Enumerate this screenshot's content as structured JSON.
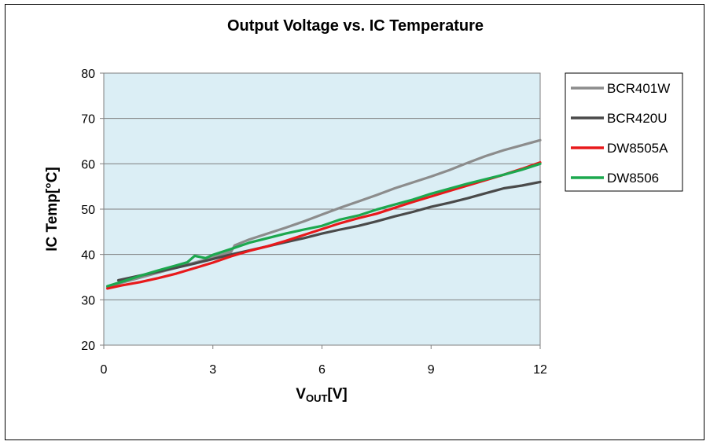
{
  "chart_data": {
    "type": "line",
    "title": "Output Voltage vs. IC Temperature",
    "xlabel_main": "V",
    "xlabel_sub": "OUT",
    "xlabel_unit": "[V]",
    "ylabel": "IC Temp[°C]",
    "xlim": [
      0,
      12
    ],
    "ylim": [
      20,
      80
    ],
    "xticks": [
      0,
      3,
      6,
      9,
      12
    ],
    "yticks": [
      20,
      30,
      40,
      50,
      60,
      70,
      80
    ],
    "grid": true,
    "legend_position": "right",
    "background": "#dbeef5",
    "series": [
      {
        "name": "BCR401W",
        "color": "#8c8c8c",
        "x": [
          0.1,
          0.5,
          1.0,
          1.5,
          2.0,
          2.5,
          3.0,
          3.5,
          3.6,
          4.0,
          4.5,
          5.0,
          5.5,
          6.0,
          6.5,
          7.0,
          7.5,
          8.0,
          8.5,
          9.0,
          9.5,
          10.0,
          10.5,
          11.0,
          11.5,
          12.0
        ],
        "y": [
          32.8,
          33.8,
          34.9,
          36.0,
          37.1,
          38.2,
          39.3,
          40.6,
          42.0,
          43.3,
          44.6,
          45.9,
          47.3,
          48.8,
          50.3,
          51.7,
          53.1,
          54.6,
          55.9,
          57.2,
          58.6,
          60.2,
          61.7,
          63.0,
          64.1,
          65.2
        ]
      },
      {
        "name": "BCR420U",
        "color": "#4a4a4a",
        "x": [
          0.4,
          0.8,
          1.2,
          1.6,
          2.0,
          2.5,
          3.0,
          3.5,
          4.0,
          4.5,
          5.0,
          5.5,
          6.0,
          6.5,
          7.0,
          7.5,
          8.0,
          8.5,
          9.0,
          9.5,
          10.0,
          10.5,
          11.0,
          11.5,
          12.0
        ],
        "y": [
          34.3,
          35.0,
          35.7,
          36.4,
          37.1,
          38.0,
          39.0,
          40.0,
          40.9,
          41.8,
          42.7,
          43.6,
          44.6,
          45.5,
          46.3,
          47.3,
          48.4,
          49.4,
          50.5,
          51.4,
          52.4,
          53.5,
          54.6,
          55.2,
          56.0
        ]
      },
      {
        "name": "DW8505A",
        "color": "#e8191b",
        "x": [
          0.1,
          0.5,
          1.0,
          1.5,
          2.0,
          2.5,
          3.0,
          3.5,
          4.0,
          4.5,
          5.0,
          5.5,
          6.0,
          6.5,
          7.0,
          7.5,
          8.0,
          8.5,
          9.0,
          9.5,
          10.0,
          10.5,
          11.0,
          11.5,
          12.0
        ],
        "y": [
          32.5,
          33.2,
          33.9,
          34.8,
          35.8,
          37.0,
          38.2,
          39.6,
          40.8,
          41.8,
          43.0,
          44.3,
          45.6,
          46.9,
          48.0,
          49.0,
          50.3,
          51.6,
          52.8,
          54.0,
          55.2,
          56.4,
          57.6,
          58.9,
          60.3
        ]
      },
      {
        "name": "DW8506",
        "color": "#1ca84e",
        "x": [
          0.1,
          0.5,
          1.0,
          1.5,
          2.0,
          2.3,
          2.5,
          2.8,
          3.0,
          3.5,
          4.0,
          4.5,
          5.0,
          5.5,
          6.0,
          6.5,
          7.0,
          7.5,
          8.0,
          8.5,
          9.0,
          9.5,
          10.0,
          10.5,
          11.0,
          11.5,
          12.0
        ],
        "y": [
          33.0,
          34.0,
          35.3,
          36.5,
          37.6,
          38.3,
          39.7,
          39.2,
          39.9,
          41.2,
          42.6,
          43.6,
          44.6,
          45.5,
          46.3,
          47.7,
          48.6,
          49.9,
          51.0,
          52.1,
          53.4,
          54.5,
          55.6,
          56.6,
          57.6,
          58.7,
          60.0
        ]
      }
    ]
  }
}
